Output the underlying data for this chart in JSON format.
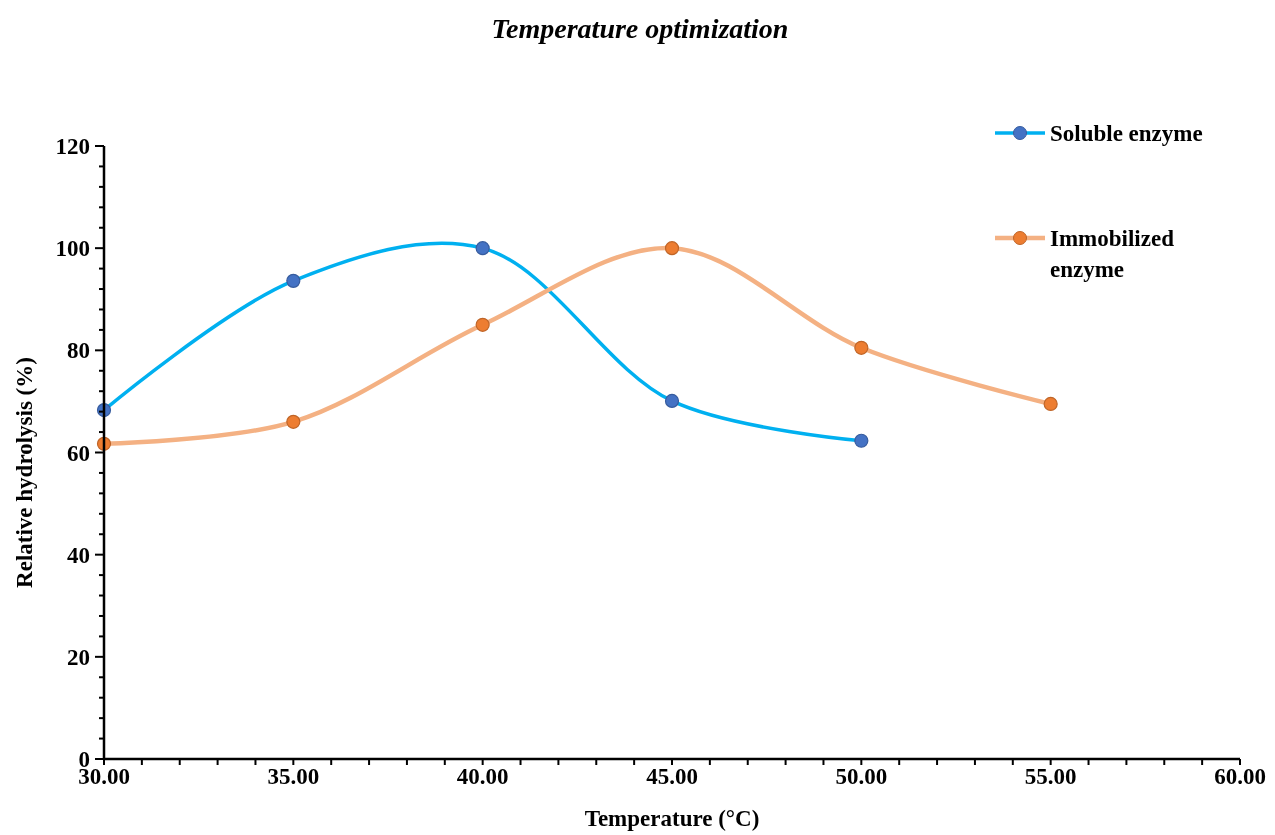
{
  "chart_data": {
    "type": "line",
    "title": "Temperature optimization",
    "xlabel": "Temperature (°C)",
    "ylabel": "Relative hydrolysis (%)",
    "x": [
      30,
      35,
      40,
      45,
      50,
      55
    ],
    "series": [
      {
        "name": "Soluble enzyme",
        "color": "#00b0f0",
        "values": [
          68.3,
          93.6,
          100,
          70.1,
          62.3,
          null
        ]
      },
      {
        "name": "Immobilized enzyme",
        "color": "#f4b183",
        "values": [
          61.7,
          66.0,
          85.0,
          100,
          80.5,
          69.5
        ]
      }
    ],
    "xlim": [
      30,
      60
    ],
    "xticks": [
      {
        "value": 30,
        "label": "30.00"
      },
      {
        "value": 31,
        "label": null
      },
      {
        "value": 32,
        "label": null
      },
      {
        "value": 33,
        "label": null
      },
      {
        "value": 34,
        "label": null
      },
      {
        "value": 35,
        "label": "35.00"
      },
      {
        "value": 36,
        "label": null
      },
      {
        "value": 37,
        "label": null
      },
      {
        "value": 38,
        "label": null
      },
      {
        "value": 39,
        "label": null
      },
      {
        "value": 40,
        "label": "40.00"
      },
      {
        "value": 41,
        "label": null
      },
      {
        "value": 42,
        "label": null
      },
      {
        "value": 43,
        "label": null
      },
      {
        "value": 44,
        "label": null
      },
      {
        "value": 45,
        "label": "45.00"
      },
      {
        "value": 46,
        "label": null
      },
      {
        "value": 47,
        "label": null
      },
      {
        "value": 48,
        "label": null
      },
      {
        "value": 49,
        "label": null
      },
      {
        "value": 50,
        "label": "50.00"
      },
      {
        "value": 51,
        "label": null
      },
      {
        "value": 52,
        "label": null
      },
      {
        "value": 53,
        "label": null
      },
      {
        "value": 54,
        "label": null
      },
      {
        "value": 55,
        "label": "55.00"
      },
      {
        "value": 56,
        "label": null
      },
      {
        "value": 57,
        "label": null
      },
      {
        "value": 58,
        "label": null
      },
      {
        "value": 59,
        "label": null
      },
      {
        "value": 60,
        "label": "60.00"
      }
    ],
    "ylim": [
      0,
      120
    ],
    "yticks": [
      0,
      {
        "value": 4,
        "label": null
      },
      {
        "value": 8,
        "label": null
      },
      {
        "value": 12,
        "label": null
      },
      {
        "value": 16,
        "label": null
      },
      20,
      {
        "value": 24,
        "label": null
      },
      {
        "value": 28,
        "label": null
      },
      {
        "value": 32,
        "label": null
      },
      {
        "value": 36,
        "label": null
      },
      40,
      {
        "value": 44,
        "label": null
      },
      {
        "value": 48,
        "label": null
      },
      {
        "value": 52,
        "label": null
      },
      {
        "value": 56,
        "label": null
      },
      60,
      {
        "value": 64,
        "label": null
      },
      {
        "value": 68,
        "label": null
      },
      {
        "value": 72,
        "label": null
      },
      {
        "value": 76,
        "label": null
      },
      80,
      {
        "value": 84,
        "label": null
      },
      {
        "value": 88,
        "label": null
      },
      {
        "value": 92,
        "label": null
      },
      {
        "value": 96,
        "label": null
      },
      100,
      {
        "value": 104,
        "label": null
      },
      {
        "value": 108,
        "label": null
      },
      {
        "value": 112,
        "label": null
      },
      {
        "value": 116,
        "label": null
      },
      120
    ],
    "grid": false,
    "legend": "top right",
    "marker": "circle",
    "line_style": "solid"
  }
}
